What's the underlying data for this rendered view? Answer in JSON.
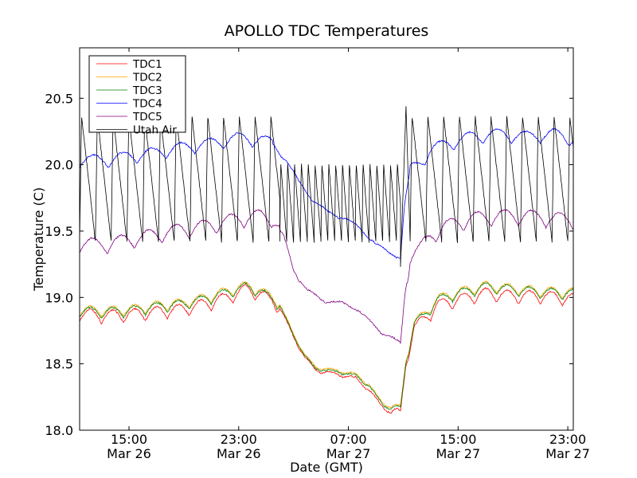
{
  "chart_data": {
    "type": "line",
    "title": "APOLLO TDC Temperatures",
    "xlabel": "Date (GMT)",
    "ylabel": "Temperature (C)",
    "xlim": [
      11.4,
      47.4
    ],
    "ylim": [
      18.0,
      20.88
    ],
    "x_unit": "hours since Mar 26 00:00 GMT",
    "grid": false,
    "legend_position": "upper-left",
    "yticks": [
      {
        "value": 18.0,
        "label": "18.0"
      },
      {
        "value": 18.5,
        "label": "18.5"
      },
      {
        "value": 19.0,
        "label": "19.0"
      },
      {
        "value": 19.5,
        "label": "19.5"
      },
      {
        "value": 20.0,
        "label": "20.0"
      },
      {
        "value": 20.5,
        "label": "20.5"
      }
    ],
    "xticks": [
      {
        "value": 15,
        "time": "15:00",
        "date": "Mar 26"
      },
      {
        "value": 23,
        "time": "23:00",
        "date": "Mar 26"
      },
      {
        "value": 31,
        "time": "07:00",
        "date": "Mar 27"
      },
      {
        "value": 39,
        "time": "15:00",
        "date": "Mar 27"
      },
      {
        "value": 47,
        "time": "23:00",
        "date": "Mar 27"
      }
    ],
    "series": [
      {
        "name": "TDC1",
        "color": "#ff0000",
        "oscillation": {
          "period": 1.6,
          "amplitude": 0.05,
          "start": 11.4,
          "end": 47.4,
          "suppress_from": 26.0,
          "suppress_to": 34.2
        },
        "points": [
          [
            11.4,
            18.87
          ],
          [
            13,
            18.85
          ],
          [
            15,
            18.86
          ],
          [
            17,
            18.88
          ],
          [
            19,
            18.9
          ],
          [
            21,
            18.95
          ],
          [
            22.5,
            19.0
          ],
          [
            23.5,
            19.05
          ],
          [
            24.5,
            19.02
          ],
          [
            26,
            18.92
          ],
          [
            27,
            18.7
          ],
          [
            27.8,
            18.55
          ],
          [
            28.6,
            18.45
          ],
          [
            30,
            18.42
          ],
          [
            31.5,
            18.39
          ],
          [
            32.5,
            18.3
          ],
          [
            33.5,
            18.17
          ],
          [
            34.3,
            18.12
          ],
          [
            34.8,
            18.1
          ],
          [
            35.2,
            18.5
          ],
          [
            35.8,
            18.76
          ],
          [
            36.5,
            18.82
          ],
          [
            37.5,
            18.93
          ],
          [
            39,
            18.97
          ],
          [
            41,
            19.02
          ],
          [
            43,
            19.0
          ],
          [
            45,
            19.0
          ],
          [
            47.4,
            18.98
          ]
        ]
      },
      {
        "name": "TDC2",
        "color": "#ffa500",
        "oscillation": {
          "period": 1.6,
          "amplitude": 0.04,
          "start": 11.4,
          "end": 47.4,
          "suppress_from": 26.0,
          "suppress_to": 34.2
        },
        "points": [
          [
            11.4,
            18.9
          ],
          [
            13,
            18.89
          ],
          [
            15,
            18.9
          ],
          [
            17,
            18.93
          ],
          [
            19,
            18.95
          ],
          [
            21,
            19.0
          ],
          [
            22.5,
            19.05
          ],
          [
            23.5,
            19.08
          ],
          [
            24.5,
            19.05
          ],
          [
            26,
            18.95
          ],
          [
            27,
            18.72
          ],
          [
            27.8,
            18.57
          ],
          [
            28.6,
            18.47
          ],
          [
            30,
            18.45
          ],
          [
            31.5,
            18.42
          ],
          [
            32.5,
            18.34
          ],
          [
            33.5,
            18.2
          ],
          [
            34.3,
            18.16
          ],
          [
            34.8,
            18.15
          ],
          [
            35.2,
            18.53
          ],
          [
            35.8,
            18.8
          ],
          [
            36.5,
            18.86
          ],
          [
            37.5,
            18.98
          ],
          [
            39,
            19.03
          ],
          [
            41,
            19.08
          ],
          [
            43,
            19.06
          ],
          [
            45,
            19.04
          ],
          [
            47.4,
            19.03
          ]
        ]
      },
      {
        "name": "TDC3",
        "color": "#008000",
        "oscillation": {
          "period": 1.6,
          "amplitude": 0.04,
          "start": 11.4,
          "end": 47.4,
          "suppress_from": 26.0,
          "suppress_to": 34.2
        },
        "points": [
          [
            11.4,
            18.89
          ],
          [
            13,
            18.88
          ],
          [
            15,
            18.89
          ],
          [
            17,
            18.92
          ],
          [
            19,
            18.94
          ],
          [
            21,
            18.99
          ],
          [
            22.5,
            19.04
          ],
          [
            23.5,
            19.07
          ],
          [
            24.5,
            19.04
          ],
          [
            26,
            18.94
          ],
          [
            27,
            18.71
          ],
          [
            27.8,
            18.56
          ],
          [
            28.6,
            18.46
          ],
          [
            30,
            18.44
          ],
          [
            31.5,
            18.41
          ],
          [
            32.5,
            18.33
          ],
          [
            33.5,
            18.19
          ],
          [
            34.3,
            18.15
          ],
          [
            34.8,
            18.14
          ],
          [
            35.2,
            18.52
          ],
          [
            35.8,
            18.79
          ],
          [
            36.5,
            18.85
          ],
          [
            37.5,
            18.97
          ],
          [
            39,
            19.02
          ],
          [
            41,
            19.07
          ],
          [
            43,
            19.05
          ],
          [
            45,
            19.03
          ],
          [
            47.4,
            19.02
          ]
        ]
      },
      {
        "name": "TDC4",
        "color": "#0000ff",
        "oscillation": {
          "period": 2.1,
          "amplitude": 0.05,
          "start": 11.4,
          "end": 47.4,
          "suppress_from": 25.5,
          "suppress_to": 35.5
        },
        "points": [
          [
            11.4,
            20.03
          ],
          [
            13,
            20.02
          ],
          [
            15,
            20.05
          ],
          [
            17,
            20.08
          ],
          [
            19,
            20.12
          ],
          [
            21,
            20.15
          ],
          [
            23,
            20.19
          ],
          [
            24.5,
            20.18
          ],
          [
            25.5,
            20.15
          ],
          [
            26.5,
            20.02
          ],
          [
            27.5,
            19.85
          ],
          [
            28.5,
            19.72
          ],
          [
            29.5,
            19.64
          ],
          [
            31,
            19.58
          ],
          [
            32,
            19.5
          ],
          [
            33,
            19.4
          ],
          [
            34,
            19.33
          ],
          [
            34.8,
            19.3
          ],
          [
            35.1,
            19.7
          ],
          [
            35.5,
            19.95
          ],
          [
            36.2,
            20.0
          ],
          [
            37,
            20.1
          ],
          [
            38,
            20.14
          ],
          [
            40,
            20.2
          ],
          [
            42,
            20.22
          ],
          [
            44,
            20.2
          ],
          [
            46,
            20.22
          ],
          [
            47.4,
            20.18
          ]
        ]
      },
      {
        "name": "TDC5",
        "color": "#800080",
        "oscillation": {
          "period": 2.0,
          "amplitude": 0.06,
          "start": 11.4,
          "end": 47.4,
          "suppress_from": 26.0,
          "suppress_to": 35.3
        },
        "points": [
          [
            11.4,
            19.4
          ],
          [
            13,
            19.38
          ],
          [
            15,
            19.42
          ],
          [
            17,
            19.46
          ],
          [
            19,
            19.5
          ],
          [
            21,
            19.53
          ],
          [
            23,
            19.58
          ],
          [
            24.5,
            19.6
          ],
          [
            25.5,
            19.58
          ],
          [
            26.3,
            19.45
          ],
          [
            27,
            19.2
          ],
          [
            28,
            19.05
          ],
          [
            29,
            18.98
          ],
          [
            30.5,
            18.95
          ],
          [
            31.5,
            18.92
          ],
          [
            32.5,
            18.82
          ],
          [
            33.5,
            18.73
          ],
          [
            34.8,
            18.65
          ],
          [
            35.1,
            19.0
          ],
          [
            35.5,
            19.3
          ],
          [
            36.2,
            19.35
          ],
          [
            37,
            19.45
          ],
          [
            38,
            19.52
          ],
          [
            40,
            19.58
          ],
          [
            42,
            19.6
          ],
          [
            44,
            19.6
          ],
          [
            46,
            19.58
          ],
          [
            47.4,
            19.57
          ]
        ]
      },
      {
        "name": "Utah Air",
        "color": "#000000",
        "sawtooth": {
          "base": 19.42,
          "segments": [
            {
              "from": 11.4,
              "to": 26.0,
              "period": 1.15,
              "amplitude": 0.95
            },
            {
              "from": 26.0,
              "to": 34.8,
              "period": 0.5,
              "amplitude": 0.6
            },
            {
              "from": 35.5,
              "to": 47.4,
              "period": 1.15,
              "amplitude": 0.95
            }
          ]
        },
        "points": [
          [
            11.4,
            20.0
          ],
          [
            34.8,
            19.23
          ],
          [
            35.2,
            20.44
          ]
        ]
      }
    ]
  }
}
